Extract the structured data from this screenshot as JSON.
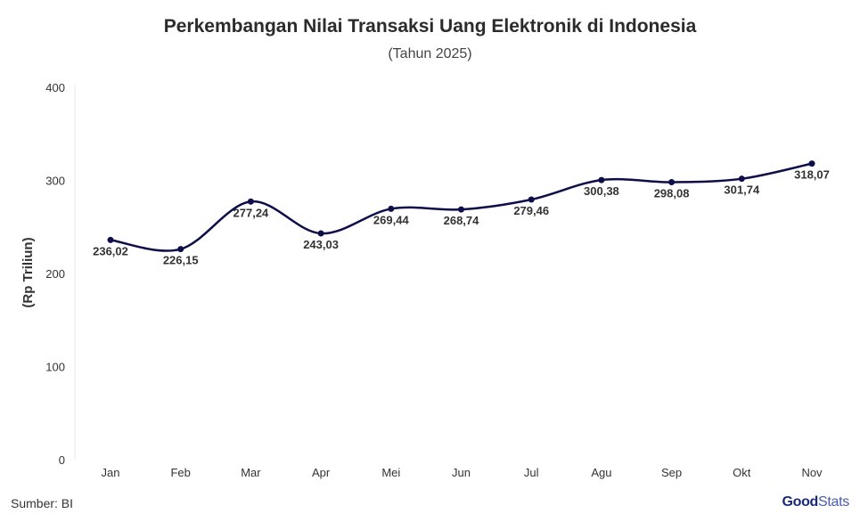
{
  "chart_data": {
    "type": "line",
    "title": "Perkembangan Nilai Transaksi Uang Elektronik di Indonesia",
    "subtitle": "(Tahun 2025)",
    "ylabel": "(Rp Triliun)",
    "xlabel": "",
    "categories": [
      "Jan",
      "Feb",
      "Mar",
      "Apr",
      "Mei",
      "Jun",
      "Jul",
      "Agu",
      "Sep",
      "Okt",
      "Nov"
    ],
    "values": [
      236.02,
      226.15,
      277.24,
      243.03,
      269.44,
      268.74,
      279.46,
      300.38,
      298.08,
      301.74,
      318.07
    ],
    "value_labels": [
      "236,02",
      "226,15",
      "277,24",
      "243,03",
      "269,44",
      "268,74",
      "279,46",
      "300,38",
      "298,08",
      "301,74",
      "318,07"
    ],
    "label_position": [
      "below",
      "below",
      "below",
      "below",
      "below",
      "below",
      "below",
      "below",
      "below",
      "below",
      "below"
    ],
    "ylim": [
      0,
      400
    ],
    "yticks": [
      "0",
      "100",
      "200",
      "300",
      "400"
    ],
    "ytick_values": [
      0,
      100,
      200,
      300,
      400
    ],
    "grid": false,
    "line_color": "#0d0d4a"
  },
  "footer": {
    "source": "Sumber: BI",
    "logo_text_bold": "Good",
    "logo_text_light": "Stats"
  }
}
